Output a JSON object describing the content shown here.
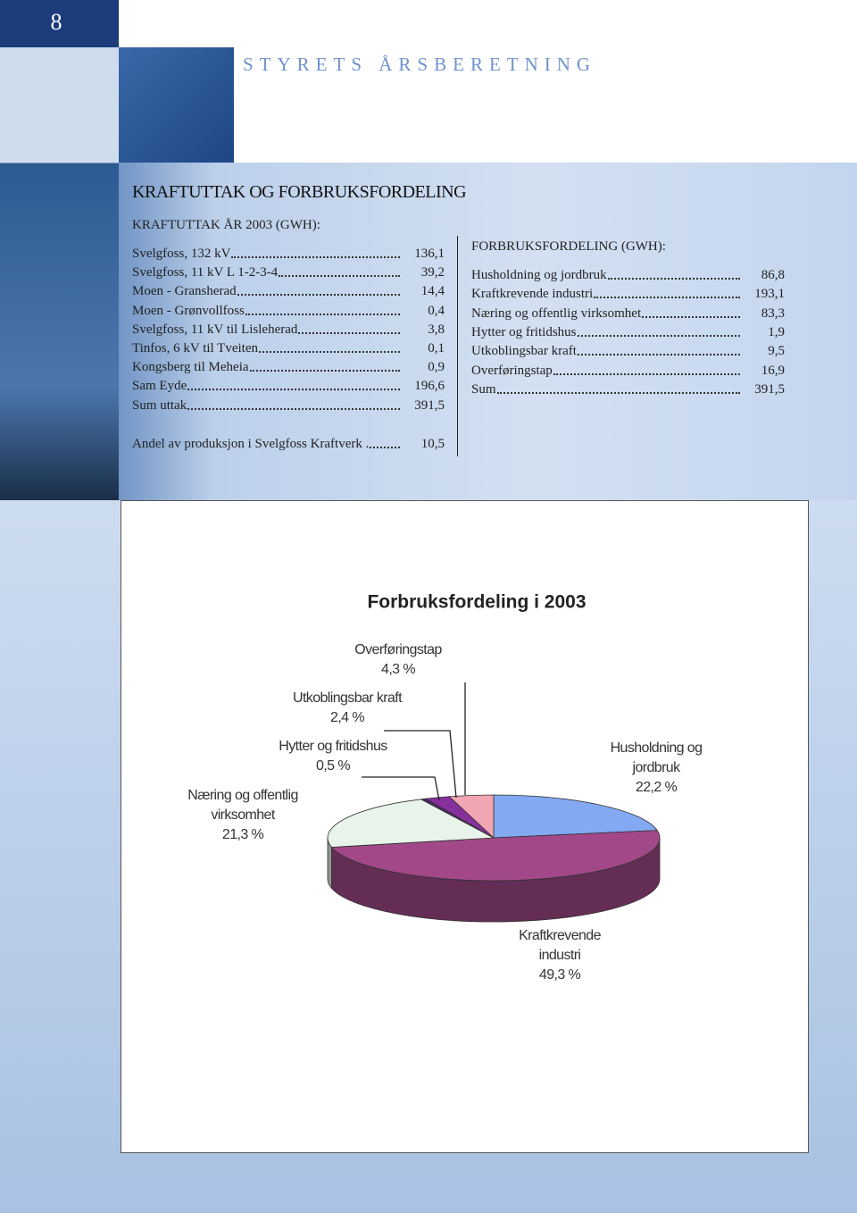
{
  "page_number": "8",
  "header": "STYRETS ÅRSBERETNING",
  "section_title": "KRAFTUTTAK OG FORBRUKSFORDELING",
  "uttak": {
    "title": "KRAFTUTTAK ÅR 2003 (GWH):",
    "rows": [
      [
        "Svelgfoss, 132 kV",
        "136,1"
      ],
      [
        "Svelgfoss, 11 kV L 1-2-3-4",
        "39,2"
      ],
      [
        "Moen - Gransherad",
        "14,4"
      ],
      [
        "Moen - Grønvollfoss",
        "0,4"
      ],
      [
        "Svelgfoss, 11 kV til Lisleherad",
        "3,8"
      ],
      [
        "Tinfos, 6 kV til Tveiten",
        "0,1"
      ],
      [
        "Kongsberg til Meheia",
        "0,9"
      ],
      [
        "Sam Eyde",
        "196,6"
      ],
      [
        "Sum uttak",
        "391,5"
      ]
    ],
    "andel": [
      "Andel av produksjon i Svelgfoss Kraftverk .",
      "10,5"
    ]
  },
  "forbruk": {
    "title": "FORBRUKSFORDELING (GWH):",
    "rows": [
      [
        "Husholdning og jordbruk",
        "86,8"
      ],
      [
        "Kraftkrevende industri",
        "193,1"
      ],
      [
        "Næring og offentlig virksomhet",
        "83,3"
      ],
      [
        "Hytter og fritidshus",
        "1,9"
      ],
      [
        "Utkoblingsbar kraft",
        "9,5"
      ],
      [
        "Overføringstap",
        "16,9"
      ],
      [
        "Sum",
        "391,5"
      ]
    ]
  },
  "chart_data": {
    "type": "pie",
    "title": "Forbruksfordeling i 2003",
    "categories": [
      "Husholdning og jordbruk",
      "Kraftkrevende industri",
      "Næring og offentlig virksomhet",
      "Hytter og fritidshus",
      "Utkoblingsbar kraft",
      "Overføringstap"
    ],
    "values": [
      22.2,
      49.3,
      21.3,
      0.5,
      2.4,
      4.3
    ],
    "value_labels": [
      "22,2 %",
      "49,3 %",
      "21,3 %",
      "0,5 %",
      "2,4 %",
      "4,3 %"
    ],
    "colors": [
      "#82a9f2",
      "#a24888",
      "#e8f4ea",
      "#4e2466",
      "#86309c",
      "#f2a6b4"
    ]
  }
}
